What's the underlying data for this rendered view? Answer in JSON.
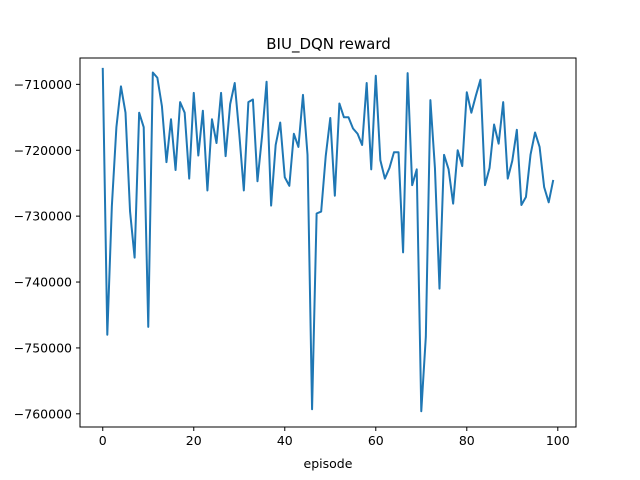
{
  "chart_data": {
    "type": "line",
    "title": "BIU_DQN reward",
    "xlabel": "episode",
    "ylabel": "",
    "xlim": [
      -5,
      104
    ],
    "ylim": [
      -762000,
      -706000
    ],
    "grid": false,
    "legend": "none",
    "x_ticks": [
      0,
      20,
      40,
      60,
      80,
      100
    ],
    "y_ticks": [
      -760000,
      -750000,
      -740000,
      -730000,
      -720000,
      -710000
    ],
    "x_tick_labels": [
      "0",
      "20",
      "40",
      "60",
      "80",
      "100"
    ],
    "y_tick_labels": [
      "−760000",
      "−750000",
      "−740000",
      "−730000",
      "−720000",
      "−710000"
    ],
    "series": [
      {
        "name": "",
        "color": "#1f77b4",
        "x": [
          0,
          1,
          2,
          3,
          4,
          5,
          6,
          7,
          8,
          9,
          10,
          11,
          12,
          13,
          14,
          15,
          16,
          17,
          18,
          19,
          20,
          21,
          22,
          23,
          24,
          25,
          26,
          27,
          28,
          29,
          30,
          31,
          32,
          33,
          34,
          35,
          36,
          37,
          38,
          39,
          40,
          41,
          42,
          43,
          44,
          45,
          46,
          47,
          48,
          49,
          50,
          51,
          52,
          53,
          54,
          55,
          56,
          57,
          58,
          59,
          60,
          61,
          62,
          63,
          64,
          65,
          66,
          67,
          68,
          69,
          70,
          71,
          72,
          73,
          74,
          75,
          76,
          77,
          78,
          79,
          80,
          81,
          82,
          83,
          84,
          85,
          86,
          87,
          88,
          89,
          90,
          91,
          92,
          93,
          94,
          95,
          96,
          97,
          98,
          99
        ],
        "values": [
          -707500,
          -748000,
          -728500,
          -716500,
          -710300,
          -714300,
          -729300,
          -736300,
          -714300,
          -716500,
          -746800,
          -708200,
          -709000,
          -713300,
          -721800,
          -715300,
          -723000,
          -712700,
          -714300,
          -724300,
          -711300,
          -720800,
          -714000,
          -726100,
          -715300,
          -718900,
          -711300,
          -720900,
          -713000,
          -709800,
          -717500,
          -726100,
          -712700,
          -712300,
          -724700,
          -717900,
          -709600,
          -728400,
          -719200,
          -715800,
          -724100,
          -725400,
          -717500,
          -719500,
          -711600,
          -720700,
          -759300,
          -729600,
          -729300,
          -720900,
          -715100,
          -726900,
          -712900,
          -715000,
          -715000,
          -716700,
          -717500,
          -719200,
          -709800,
          -722900,
          -708700,
          -721500,
          -724300,
          -722700,
          -720300,
          -720300,
          -735500,
          -708300,
          -725300,
          -722900,
          -759600,
          -748300,
          -712400,
          -722700,
          -741000,
          -720700,
          -722900,
          -728100,
          -720000,
          -722400,
          -711200,
          -714300,
          -711700,
          -709300,
          -725300,
          -722700,
          -716100,
          -719000,
          -712700,
          -724300,
          -721600,
          -716900,
          -728300,
          -727100,
          -720700,
          -717300,
          -719500,
          -725600,
          -727900,
          -724500
        ]
      }
    ]
  }
}
